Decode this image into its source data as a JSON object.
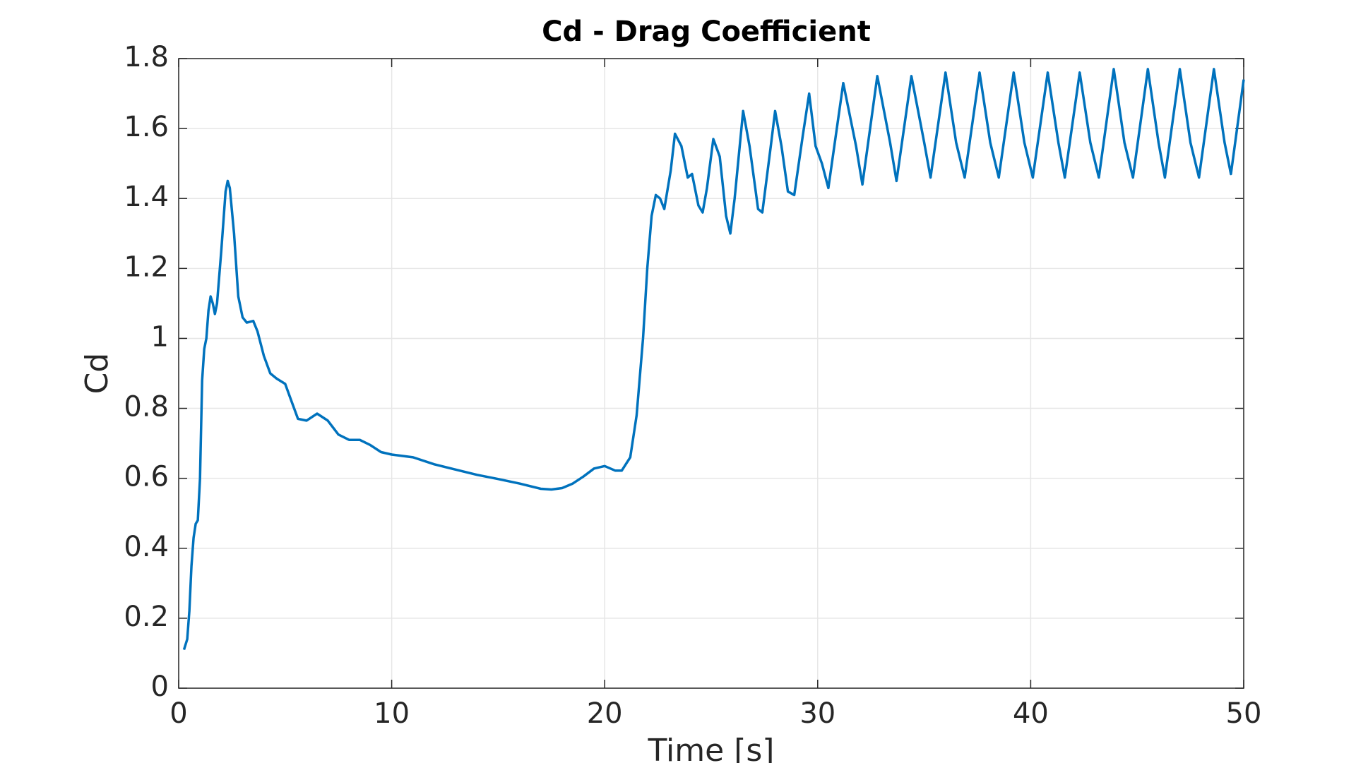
{
  "chart_data": {
    "type": "line",
    "title": "Cd - Drag Coefficient",
    "x_label": "Time [s]",
    "y_label": "Cd",
    "color": "#0072bd",
    "grid": true,
    "xlim": [
      0,
      50
    ],
    "ylim": [
      0,
      1.8
    ],
    "xticks": [
      0,
      10,
      20,
      30,
      40,
      50
    ],
    "yticks": [
      0,
      0.2,
      0.4,
      0.6,
      0.8,
      1,
      1.2,
      1.4,
      1.6,
      1.8
    ],
    "x": [
      0.25,
      0.4,
      0.5,
      0.6,
      0.7,
      0.8,
      0.9,
      1.0,
      1.1,
      1.2,
      1.3,
      1.4,
      1.5,
      1.6,
      1.7,
      1.8,
      2.0,
      2.2,
      2.3,
      2.4,
      2.6,
      2.8,
      3.0,
      3.2,
      3.5,
      3.7,
      4.0,
      4.3,
      4.6,
      5.0,
      5.3,
      5.6,
      6.0,
      6.5,
      7.0,
      7.5,
      8.0,
      8.5,
      9.0,
      9.5,
      10,
      11,
      12,
      13,
      14,
      15,
      16,
      17,
      17.5,
      18,
      18.5,
      19,
      19.5,
      20,
      20.5,
      20.8,
      21.2,
      21.5,
      21.8,
      22.0,
      22.2,
      22.4,
      22.6,
      22.8,
      23.1,
      23.3,
      23.6,
      23.9,
      24.1,
      24.4,
      24.6,
      24.8,
      25.1,
      25.4,
      25.7,
      25.9,
      26.1,
      26.5,
      26.8,
      27.2,
      27.4,
      27.8,
      28.0,
      28.3,
      28.6,
      28.9,
      29.3,
      29.6,
      29.9,
      30.2,
      30.5,
      31.2,
      31.8,
      32.1,
      32.8,
      33.4,
      33.7,
      34.4,
      35.0,
      35.3,
      36.0,
      36.5,
      36.9,
      37.6,
      38.1,
      38.5,
      39.2,
      39.7,
      40.1,
      40.8,
      41.3,
      41.6,
      42.3,
      42.8,
      43.2,
      43.9,
      44.4,
      44.8,
      45.5,
      46.0,
      46.3,
      47.0,
      47.5,
      47.9,
      48.6,
      49.1,
      49.4,
      50
    ],
    "values": [
      0.11,
      0.14,
      0.22,
      0.35,
      0.43,
      0.47,
      0.48,
      0.6,
      0.88,
      0.97,
      1.0,
      1.08,
      1.12,
      1.1,
      1.07,
      1.1,
      1.25,
      1.42,
      1.45,
      1.43,
      1.3,
      1.12,
      1.06,
      1.045,
      1.05,
      1.02,
      0.95,
      0.9,
      0.885,
      0.87,
      0.82,
      0.77,
      0.765,
      0.785,
      0.765,
      0.725,
      0.71,
      0.71,
      0.695,
      0.675,
      0.668,
      0.66,
      0.64,
      0.625,
      0.61,
      0.598,
      0.585,
      0.57,
      0.568,
      0.572,
      0.585,
      0.605,
      0.628,
      0.635,
      0.622,
      0.622,
      0.66,
      0.78,
      1.0,
      1.2,
      1.35,
      1.41,
      1.4,
      1.37,
      1.48,
      1.585,
      1.55,
      1.46,
      1.47,
      1.38,
      1.36,
      1.43,
      1.57,
      1.52,
      1.35,
      1.3,
      1.4,
      1.65,
      1.55,
      1.37,
      1.36,
      1.55,
      1.65,
      1.55,
      1.42,
      1.41,
      1.58,
      1.7,
      1.55,
      1.5,
      1.43,
      1.73,
      1.55,
      1.44,
      1.75,
      1.56,
      1.45,
      1.75,
      1.56,
      1.46,
      1.76,
      1.56,
      1.46,
      1.76,
      1.56,
      1.46,
      1.76,
      1.56,
      1.46,
      1.76,
      1.56,
      1.46,
      1.76,
      1.56,
      1.46,
      1.77,
      1.56,
      1.46,
      1.77,
      1.56,
      1.46,
      1.77,
      1.56,
      1.46,
      1.77,
      1.56,
      1.47,
      1.74
    ]
  }
}
